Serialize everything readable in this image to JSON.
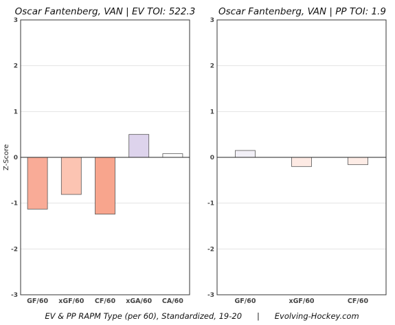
{
  "footer": "EV & PP RAPM Type (per 60), Standardized, 19-20      |      Evolving-Hockey.com",
  "chart_data": [
    {
      "type": "bar",
      "title": "Oscar Fantenberg, VAN  |  EV TOI: 522.3",
      "ylabel": "Z-Score",
      "xlabel": "",
      "ylim": [
        -3,
        3
      ],
      "yticks": [
        3,
        2,
        1,
        0,
        -1,
        -2,
        -3
      ],
      "grid": true,
      "categories": [
        "GF/60",
        "xGF/60",
        "CF/60",
        "xGA/60",
        "CA/60"
      ],
      "values": [
        -1.13,
        -0.81,
        -1.24,
        0.5,
        0.08
      ],
      "colors": [
        "#f9ab97",
        "#fcc4b2",
        "#f8a58d",
        "#ddd3ec",
        "#ffffff"
      ]
    },
    {
      "type": "bar",
      "title": "Oscar Fantenberg, VAN  |  PP TOI: 1.9",
      "ylabel": "",
      "xlabel": "",
      "ylim": [
        -3,
        3
      ],
      "yticks": [
        3,
        2,
        1,
        0,
        -1,
        -2,
        -3
      ],
      "grid": true,
      "categories": [
        "GF/60",
        "xGF/60",
        "CF/60"
      ],
      "values": [
        0.15,
        -0.2,
        -0.16
      ],
      "colors": [
        "#f2f0f7",
        "#fdeae4",
        "#fdece6"
      ]
    }
  ]
}
